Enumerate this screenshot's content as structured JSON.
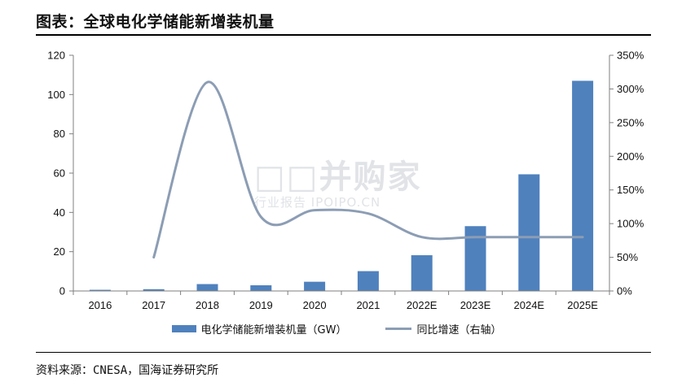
{
  "header": {
    "title": "图表：全球电化学储能新增装机量"
  },
  "source": "资料来源：CNESA，国海证券研究所",
  "watermark": {
    "main": "□□并购家",
    "sub": "行业报告 IPOIPO.CN"
  },
  "colors": {
    "bar": "#4F81BD",
    "line": "#8C9DB4",
    "axis": "#7F7F7F"
  },
  "chart_data": {
    "type": "bar",
    "categories": [
      "2016",
      "2017",
      "2018",
      "2019",
      "2020",
      "2021",
      "2022E",
      "2023E",
      "2024E",
      "2025E"
    ],
    "series": [
      {
        "name": "电化学储能新增装机量（GW）",
        "type": "bar",
        "axis": "left",
        "values": [
          0.6,
          0.9,
          3.5,
          2.9,
          4.7,
          10.1,
          18.2,
          33.0,
          59.4,
          107.0
        ]
      },
      {
        "name": "同比增速（右轴）",
        "type": "line",
        "axis": "right",
        "values": [
          null,
          50,
          310,
          110,
          120,
          115,
          80,
          80,
          80,
          80
        ]
      }
    ],
    "y_left": {
      "min": 0,
      "max": 120,
      "step": 20,
      "ticks": [
        "0",
        "20",
        "40",
        "60",
        "80",
        "100",
        "120"
      ]
    },
    "y_right": {
      "min": 0,
      "max": 350,
      "step": 50,
      "ticks": [
        "0%",
        "50%",
        "100%",
        "150%",
        "200%",
        "250%",
        "300%",
        "350%"
      ]
    },
    "grid": false,
    "legend_position": "bottom"
  }
}
